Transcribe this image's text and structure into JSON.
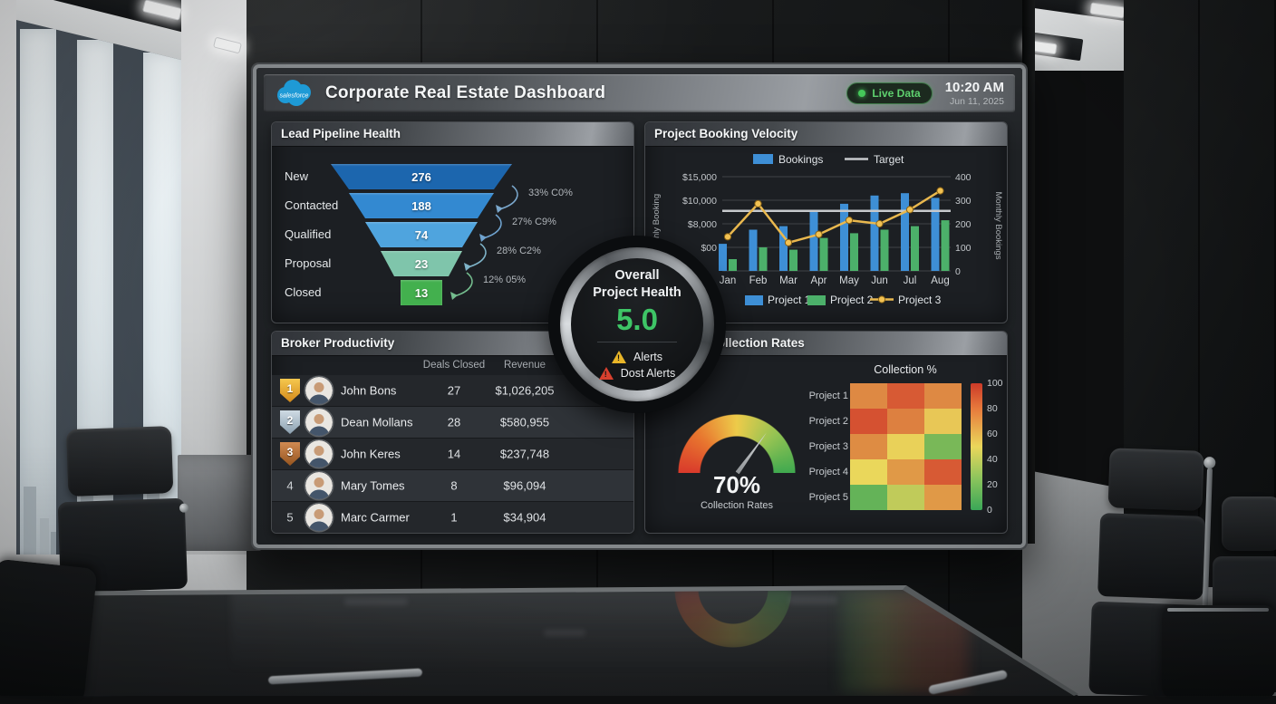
{
  "header": {
    "logo_text": "salesforce",
    "title": "Corporate Real Estate Dashboard",
    "live_badge": "Live Data",
    "time": "10:20 AM",
    "date": "Jun 11, 2025"
  },
  "health": {
    "line1": "Overall",
    "line2": "Project Health",
    "score": "5.0",
    "alert1": "Alerts",
    "alert2": "Dost Alerts"
  },
  "chart_data": [
    {
      "type": "funnel",
      "panel_title": "Lead Pipeline Health",
      "stages": [
        "New",
        "Contacted",
        "Qualified",
        "Proposal",
        "Closed"
      ],
      "values": [
        276,
        188,
        74,
        23,
        13
      ],
      "conversion_labels": [
        "33% C0%",
        "27% C9%",
        "28% C2%",
        "12% 05%"
      ],
      "colors": [
        "#1c66ae",
        "#3389d1",
        "#4fa4de",
        "#7fc5ab",
        "#43b04e"
      ]
    },
    {
      "type": "bar",
      "panel_title": "Project Booking Velocity",
      "categories": [
        "Jan",
        "Feb",
        "Mar",
        "Apr",
        "May",
        "Jun",
        "Jul",
        "Aug"
      ],
      "series": [
        {
          "name": "Project 1",
          "kind": "bar",
          "color": "#3e8fd6",
          "values": [
            115,
            175,
            190,
            255,
            285,
            320,
            330,
            310
          ]
        },
        {
          "name": "Project 2",
          "kind": "bar",
          "color": "#4cb06a",
          "values": [
            50,
            100,
            90,
            140,
            160,
            175,
            190,
            215
          ]
        },
        {
          "name": "Project 3",
          "kind": "line",
          "color": "#e9b84e",
          "values": [
            145,
            285,
            120,
            155,
            215,
            200,
            260,
            340
          ]
        }
      ],
      "target_line": {
        "label": "Target",
        "value": 255,
        "color": "#c6c9cc"
      },
      "bars_legend_label": "Bookings",
      "ylabel_left": "Monthly Booking",
      "ylabel_right": "Monthly Bookings",
      "yticks_left": [
        "$15,000",
        "$10,000",
        "$8,000",
        "$00"
      ],
      "yticks_right": [
        "400",
        "300",
        "200",
        "100",
        "0"
      ],
      "ylim_right": [
        0,
        400
      ],
      "grid": true,
      "legend_position": "top-and-bottom"
    },
    {
      "type": "table",
      "panel_title": "Broker Productivity",
      "columns": [
        "Deals Closed",
        "Revenue"
      ],
      "rows": [
        {
          "rank": "1",
          "name": "John Bons",
          "deals": "27",
          "revenue": "$1,026,205"
        },
        {
          "rank": "2",
          "name": "Dean Mollans",
          "deals": "28",
          "revenue": "$580,955"
        },
        {
          "rank": "3",
          "name": "John Keres",
          "deals": "14",
          "revenue": "$237,748"
        },
        {
          "rank": "4",
          "name": "Mary Tomes",
          "deals": "8",
          "revenue": "$96,094"
        },
        {
          "rank": "5",
          "name": "Marc Carmer",
          "deals": "1",
          "revenue": "$34,904"
        }
      ]
    },
    {
      "type": "heatmap",
      "panel_title": "Payment Collection Rates",
      "heatmap_title": "Collection %",
      "rows": [
        "Project 1",
        "Project 2",
        "Project 3",
        "Project 4",
        "Project 5"
      ],
      "values": [
        [
          75,
          90,
          75
        ],
        [
          93,
          78,
          55
        ],
        [
          74,
          52,
          18
        ],
        [
          50,
          70,
          90
        ],
        [
          12,
          38,
          70
        ]
      ],
      "scale_ticks": [
        "100",
        "80",
        "60",
        "40",
        "20",
        "0"
      ],
      "scale_range": [
        0,
        100
      ]
    },
    {
      "type": "gauge",
      "value": 70,
      "display": "70%",
      "label": "Collection Rates",
      "range": [
        0,
        100
      ]
    }
  ]
}
